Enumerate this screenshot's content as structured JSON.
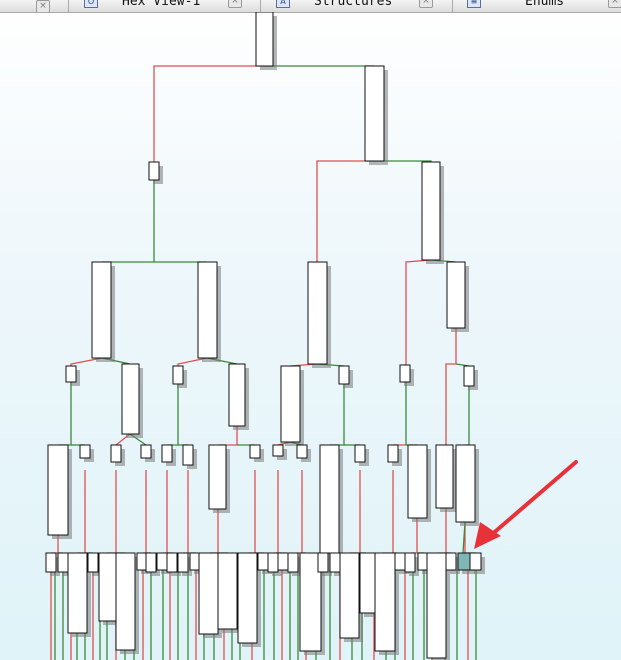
{
  "tabs": [
    {
      "label": "Hex View-1",
      "icon": "hex-view-icon",
      "icon_glyph": "O"
    },
    {
      "label": "Structures",
      "icon": "structures-icon",
      "icon_glyph": "A"
    },
    {
      "label": "Enums",
      "icon": "enums-icon",
      "icon_glyph": "≡"
    }
  ],
  "close_glyph": "×",
  "graph": {
    "true_edge_color": "#3a8a3a",
    "false_edge_color": "#e05050",
    "selected_node_color": "#7fb7b6",
    "arrow_color": "#e8323a"
  }
}
